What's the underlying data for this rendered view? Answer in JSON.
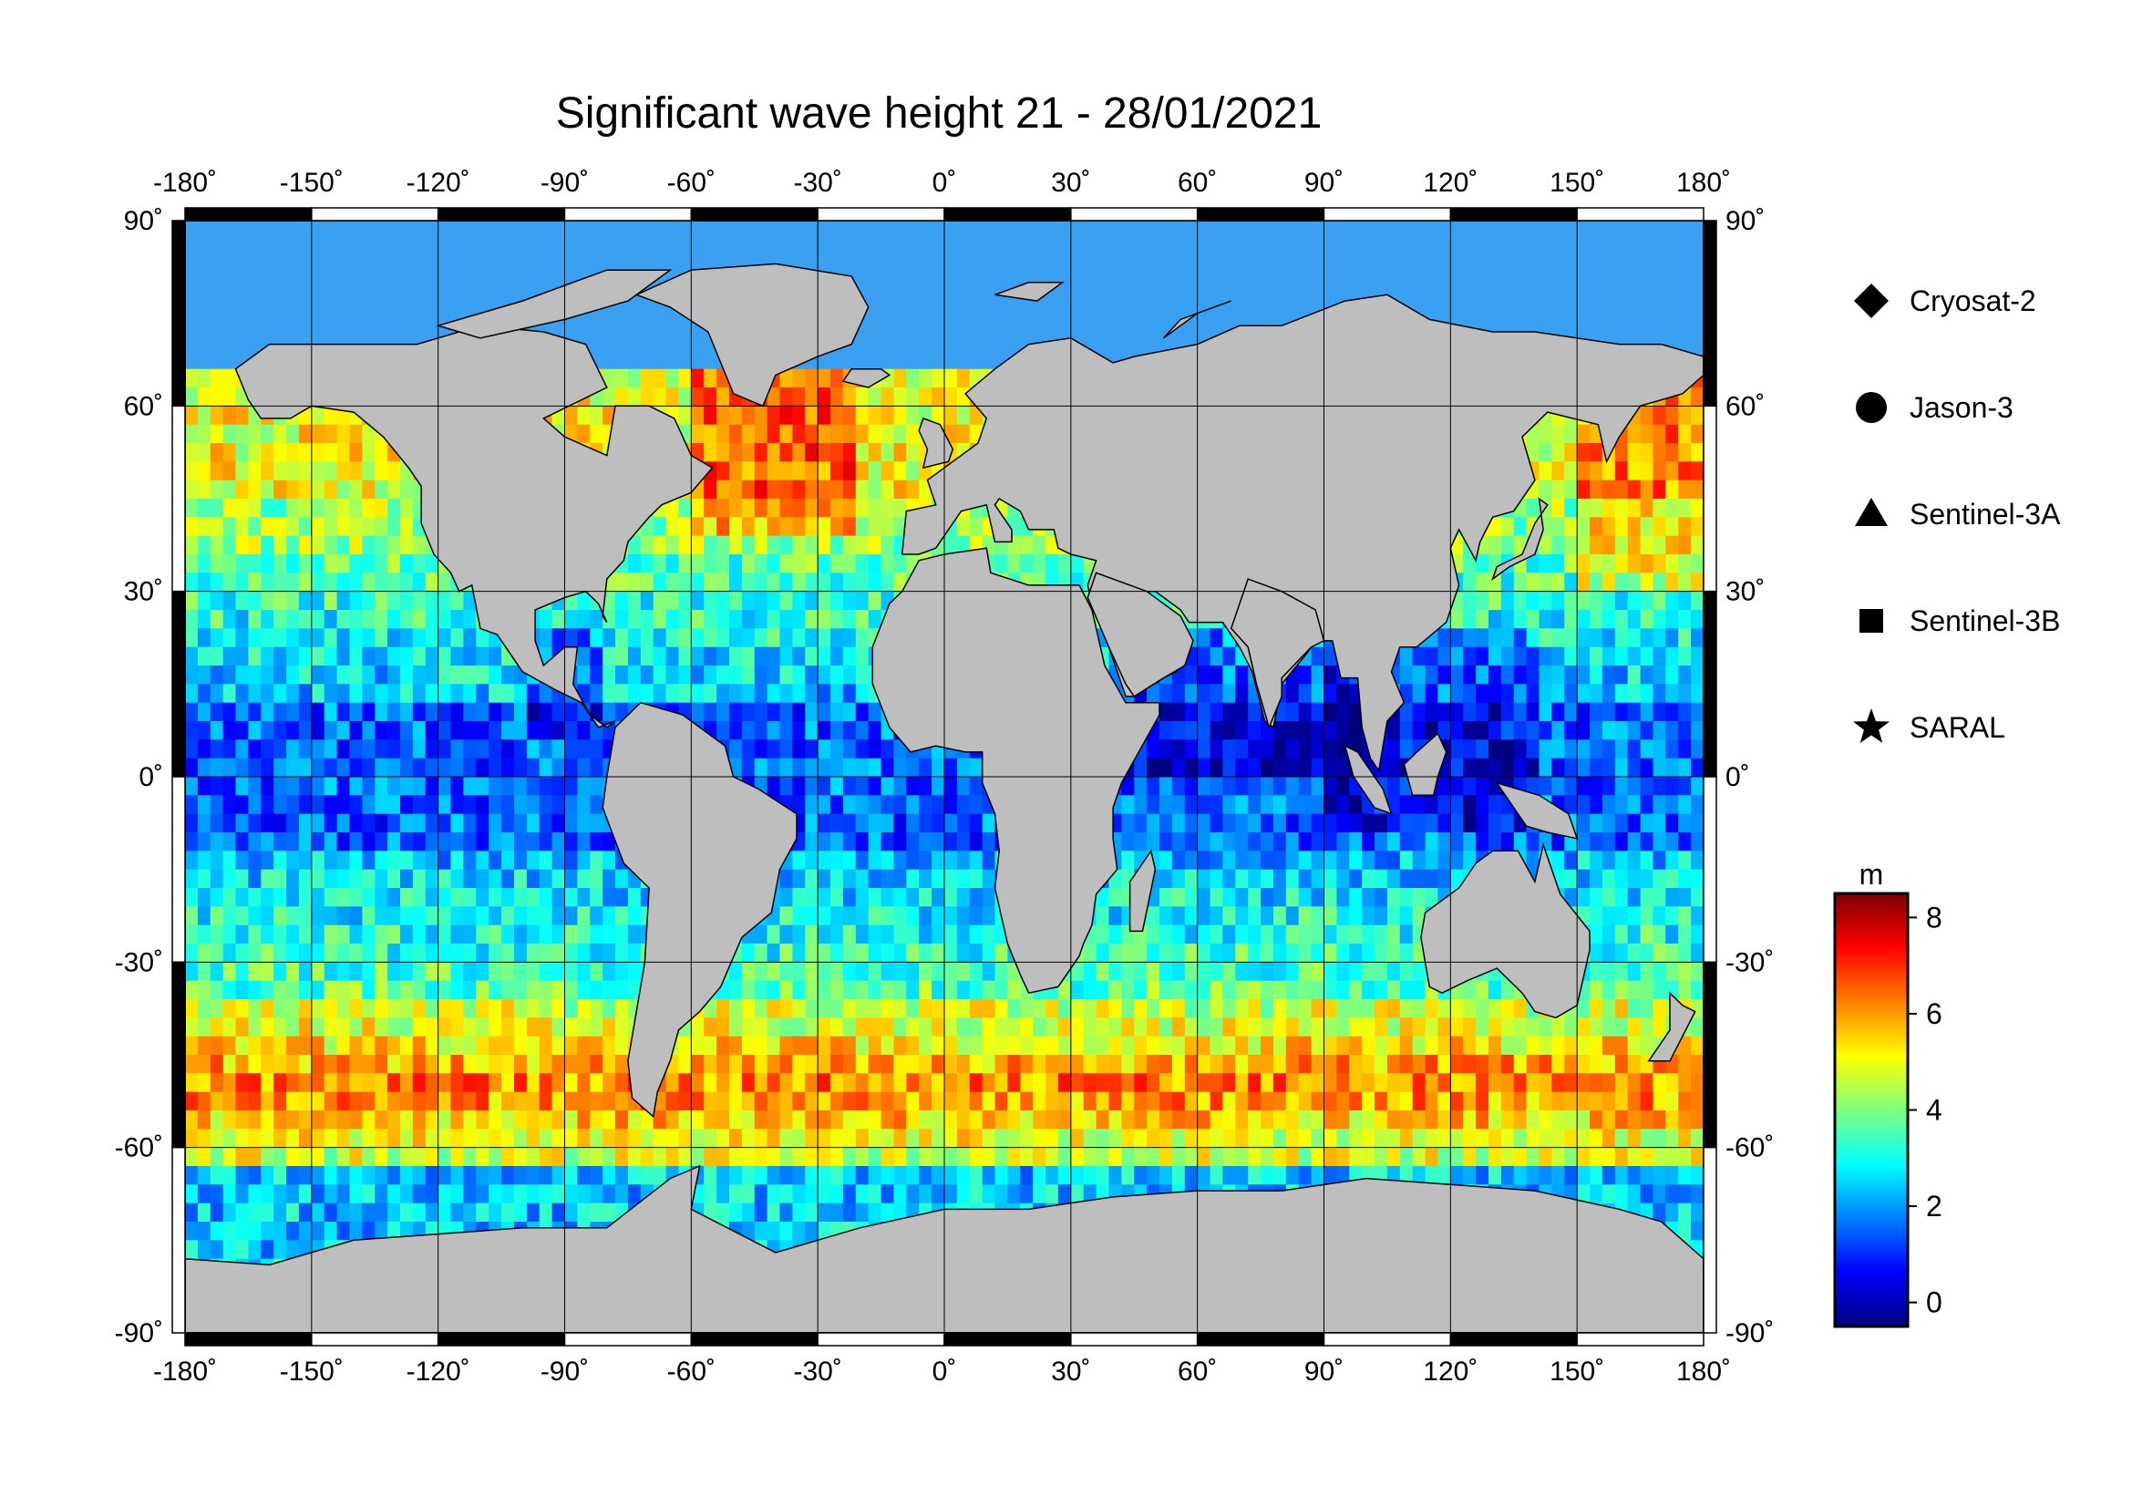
{
  "title": "Significant wave height 21 - 28/01/2021",
  "map": {
    "lon_range": [
      -180,
      180
    ],
    "lat_range": [
      -90,
      90
    ],
    "lon_ticks": [
      {
        "value": -180,
        "label": "-180˚"
      },
      {
        "value": -150,
        "label": "-150˚"
      },
      {
        "value": -120,
        "label": "-120˚"
      },
      {
        "value": -90,
        "label": "-90˚"
      },
      {
        "value": -60,
        "label": "-60˚"
      },
      {
        "value": -30,
        "label": "-30˚"
      },
      {
        "value": 0,
        "label": "0˚"
      },
      {
        "value": 30,
        "label": "30˚"
      },
      {
        "value": 60,
        "label": "60˚"
      },
      {
        "value": 90,
        "label": "90˚"
      },
      {
        "value": 120,
        "label": "120˚"
      },
      {
        "value": 150,
        "label": "150˚"
      },
      {
        "value": 180,
        "label": "180˚"
      }
    ],
    "lat_ticks": [
      {
        "value": 90,
        "label": "90˚"
      },
      {
        "value": 60,
        "label": "60˚"
      },
      {
        "value": 30,
        "label": "30˚"
      },
      {
        "value": 0,
        "label": "0˚"
      },
      {
        "value": -30,
        "label": "-30˚"
      },
      {
        "value": -60,
        "label": "-60˚"
      },
      {
        "value": -90,
        "label": "-90˚"
      }
    ],
    "projection": "equirectangular",
    "gridlines": true,
    "land_color": "#bebebe",
    "nodata_color": "#ffffff"
  },
  "legend": {
    "placement": "right",
    "items": [
      {
        "symbol": "diamond",
        "label": "Cryosat-2"
      },
      {
        "symbol": "circle",
        "label": "Jason-3"
      },
      {
        "symbol": "triangle",
        "label": "Sentinel-3A"
      },
      {
        "symbol": "square",
        "label": "Sentinel-3B"
      },
      {
        "symbol": "star",
        "label": "SARAL"
      }
    ]
  },
  "colorbar": {
    "unit": "m",
    "min": -0.5,
    "max": 8.5,
    "ticks": [
      {
        "value": 8,
        "label": "8"
      },
      {
        "value": 6,
        "label": "6"
      },
      {
        "value": 4,
        "label": "4"
      },
      {
        "value": 2,
        "label": "2"
      },
      {
        "value": 0,
        "label": "0"
      }
    ],
    "colors": [
      "#00007f",
      "#0000ff",
      "#007fff",
      "#00ffff",
      "#7fff7f",
      "#ffff00",
      "#ff7f00",
      "#ff0000",
      "#7f0000"
    ]
  }
}
